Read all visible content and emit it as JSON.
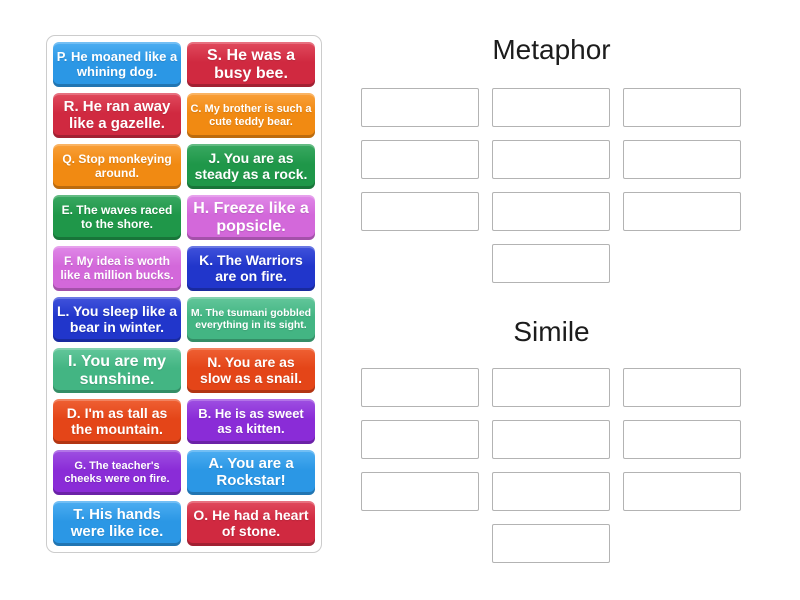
{
  "activity": {
    "type": "group-sort",
    "background_color": "#ffffff"
  },
  "palette": {
    "blue": {
      "base": "#2b97e5",
      "light": "#4daef2"
    },
    "crimson": {
      "base": "#d02940",
      "light": "#e14b5e"
    },
    "orange": {
      "base": "#f18a12",
      "light": "#f9a03a"
    },
    "green": {
      "base": "#1f9749",
      "light": "#3aa962"
    },
    "orchid": {
      "base": "#d368da",
      "light": "#e089e8"
    },
    "royalblue": {
      "base": "#2136cb",
      "light": "#4153dc"
    },
    "seagreen": {
      "base": "#43b583",
      "light": "#63c79b"
    },
    "orangered": {
      "base": "#e44518",
      "light": "#ef6134"
    },
    "purple": {
      "base": "#8a2cd7",
      "light": "#9f50e2"
    }
  },
  "tile_panel": {
    "border_color": "#cccccc",
    "tiles": [
      {
        "text": "P. He moaned like a whining dog.",
        "color": "blue",
        "font_size": 13
      },
      {
        "text": "S. He was a busy bee.",
        "color": "crimson",
        "font_size": 16
      },
      {
        "text": "R. He ran away like a gazelle.",
        "color": "crimson",
        "font_size": 15
      },
      {
        "text": "C. My brother is such a cute teddy bear.",
        "color": "orange",
        "font_size": 11
      },
      {
        "text": "Q. Stop monkeying around.",
        "color": "orange",
        "font_size": 12
      },
      {
        "text": "J. You are as steady as a rock.",
        "color": "green",
        "font_size": 14
      },
      {
        "text": "E. The waves raced to the shore.",
        "color": "green",
        "font_size": 12
      },
      {
        "text": "H. Freeze like a popsicle.",
        "color": "orchid",
        "font_size": 16
      },
      {
        "text": "F. My idea is worth like a million bucks.",
        "color": "orchid",
        "font_size": 12
      },
      {
        "text": "K. The Warriors are on fire.",
        "color": "royalblue",
        "font_size": 14
      },
      {
        "text": "L. You sleep like a bear in winter.",
        "color": "royalblue",
        "font_size": 14
      },
      {
        "text": "M. The tsumani gobbled everything in its sight.",
        "color": "seagreen",
        "font_size": 10.5
      },
      {
        "text": "I. You are my sunshine.",
        "color": "seagreen",
        "font_size": 16
      },
      {
        "text": "N. You are as slow as a snail.",
        "color": "orangered",
        "font_size": 14
      },
      {
        "text": "D. I'm as tall as the mountain.",
        "color": "orangered",
        "font_size": 14
      },
      {
        "text": "B. He is as sweet as a kitten.",
        "color": "purple",
        "font_size": 13
      },
      {
        "text": "G. The teacher's cheeks were on fire.",
        "color": "purple",
        "font_size": 11
      },
      {
        "text": "A. You are a Rockstar!",
        "color": "blue",
        "font_size": 15
      },
      {
        "text": "T. His hands were like ice.",
        "color": "blue",
        "font_size": 15
      },
      {
        "text": "O. He had a heart of stone.",
        "color": "crimson",
        "font_size": 14
      }
    ]
  },
  "groups": [
    {
      "title": "Metaphor",
      "grid_slots": 9,
      "extra_slots": 1
    },
    {
      "title": "Simile",
      "grid_slots": 9,
      "extra_slots": 1
    }
  ],
  "slot_style": {
    "border_color": "#b3b3b3",
    "fill": "#ffffff"
  }
}
